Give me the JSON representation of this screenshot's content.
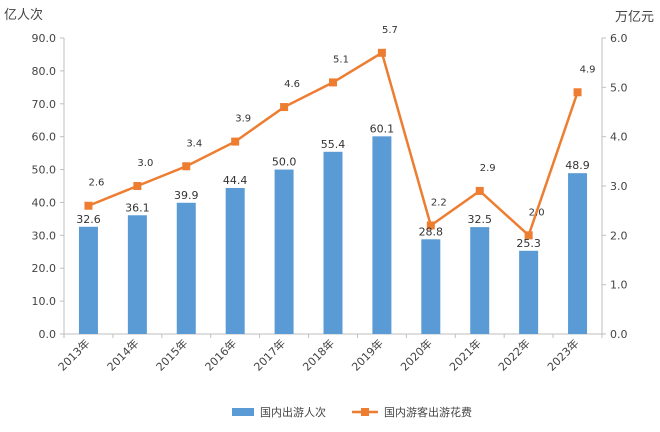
{
  "chart_data": {
    "type": "bar",
    "title": "",
    "ylabel_left": "亿人次",
    "ylabel_right": "万亿元",
    "categories": [
      "2013年",
      "2014年",
      "2015年",
      "2016年",
      "2017年",
      "2018年",
      "2019年",
      "2020年",
      "2021年",
      "2022年",
      "2023年"
    ],
    "y_left_range": [
      0,
      90
    ],
    "y_left_ticks": [
      "0.0",
      "10.0",
      "20.0",
      "30.0",
      "40.0",
      "50.0",
      "60.0",
      "70.0",
      "80.0",
      "90.0"
    ],
    "y_right_range": [
      0,
      6
    ],
    "y_right_ticks": [
      "0.0",
      "1.0",
      "2.0",
      "3.0",
      "4.0",
      "5.0",
      "6.0"
    ],
    "grid": false,
    "legend_position": "bottom",
    "series": [
      {
        "name": "国内出游人次",
        "type": "bar",
        "axis": "left",
        "color": "#5b9bd5",
        "values": [
          32.6,
          36.1,
          39.9,
          44.4,
          50.0,
          55.4,
          60.1,
          28.8,
          32.5,
          25.3,
          48.9
        ],
        "labels": [
          "32.6",
          "36.1",
          "39.9",
          "44.4",
          "50.0",
          "55.4",
          "60.1",
          "28.8",
          "32.5",
          "25.3",
          "48.9"
        ]
      },
      {
        "name": "国内游客出游花费",
        "type": "line",
        "axis": "right",
        "color": "#ed7d31",
        "values": [
          2.6,
          3.0,
          3.4,
          3.9,
          4.6,
          5.1,
          5.7,
          2.2,
          2.9,
          2.0,
          4.9
        ],
        "labels": [
          "2.6",
          "3.0",
          "3.4",
          "3.9",
          "4.6",
          "5.1",
          "5.7",
          "2.2",
          "2.9",
          "2.0",
          "4.9"
        ]
      }
    ]
  }
}
